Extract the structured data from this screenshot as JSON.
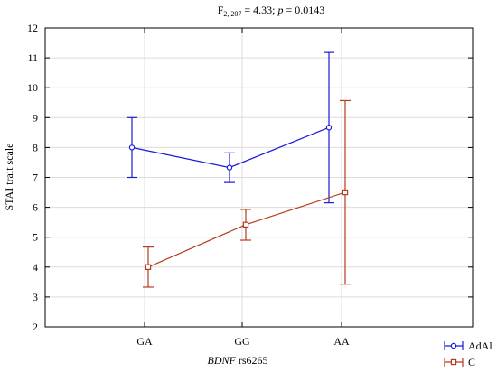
{
  "chart_data": {
    "type": "line",
    "title_prefix": "F",
    "title_subscript": "2, 207",
    "title_mid": " = 4.33; ",
    "title_p": "p",
    "title_suffix": " = 0.0143",
    "xlabel_italic": "BDNF",
    "xlabel_rest": " rs6265",
    "ylabel": "STAI trait scale",
    "categories": [
      "GA",
      "GG",
      "AA"
    ],
    "ylim": [
      2,
      12
    ],
    "yticks": [
      "2",
      "3",
      "4",
      "5",
      "6",
      "7",
      "8",
      "9",
      "10",
      "11",
      "12"
    ],
    "grid": true,
    "legend_position": "bottom-right",
    "series": [
      {
        "name": "AdAl",
        "color": "#1a1adb",
        "marker": "circle",
        "values": [
          8.0,
          7.33,
          8.67
        ],
        "lower": [
          7.0,
          6.83,
          6.15
        ],
        "upper": [
          9.0,
          7.82,
          11.18
        ]
      },
      {
        "name": "C",
        "color": "#b83a1e",
        "marker": "square",
        "values": [
          4.0,
          5.42,
          6.5
        ],
        "lower": [
          3.33,
          4.9,
          3.43
        ],
        "upper": [
          4.67,
          5.93,
          9.57
        ]
      }
    ]
  }
}
